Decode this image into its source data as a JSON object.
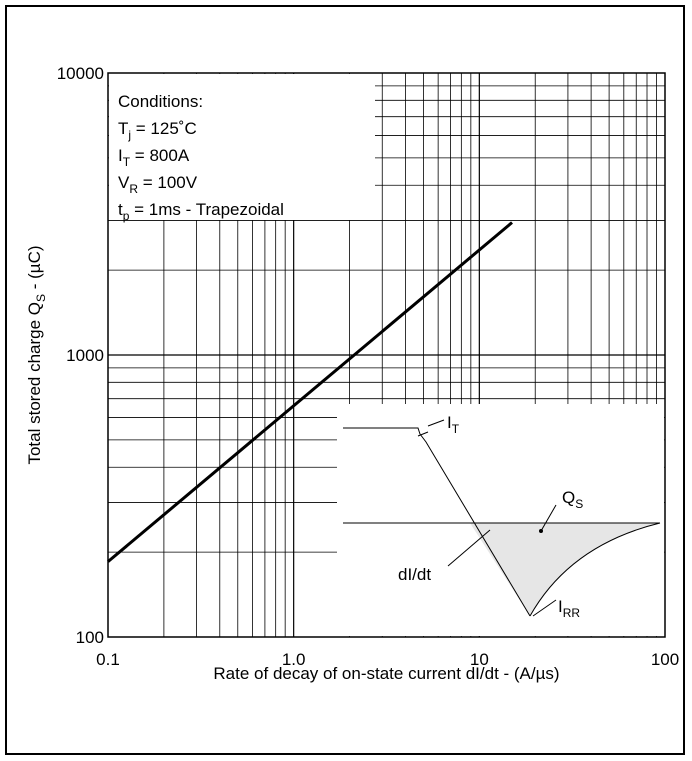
{
  "chart_data": {
    "type": "line",
    "xscale": "log",
    "yscale": "log",
    "xlim": [
      0.1,
      100
    ],
    "ylim": [
      100,
      10000
    ],
    "x_ticks": [
      "0.1",
      "1.0",
      "10",
      "100"
    ],
    "y_ticks": [
      "100",
      "1000",
      "10000"
    ],
    "xlabel": "Rate of decay of on-state current dI/dt - (A/µs)",
    "ylabel": {
      "main": "Total stored charge Q",
      "sub": "S",
      "rest": " - (µC)"
    },
    "grid": true,
    "series": [
      {
        "x": [
          0.1,
          15
        ],
        "y": [
          185,
          2950
        ]
      }
    ],
    "conditions": [
      {
        "main": "Conditions:",
        "sub": "",
        "rest": ""
      },
      {
        "main": "T",
        "sub": "j",
        "rest": " = 125˚C"
      },
      {
        "main": "I",
        "sub": "T",
        "rest": " = 800A"
      },
      {
        "main": "V",
        "sub": "R",
        "rest": " = 100V"
      },
      {
        "main": "t",
        "sub": "p",
        "rest": " = 1ms - Trapezoidal"
      }
    ],
    "inset": {
      "label_it": {
        "main": "I",
        "sub": "T"
      },
      "label_qs": {
        "main": "Q",
        "sub": "S"
      },
      "label_didt": "dI/dt",
      "label_irr": {
        "main": "I",
        "sub": "RR"
      }
    }
  }
}
